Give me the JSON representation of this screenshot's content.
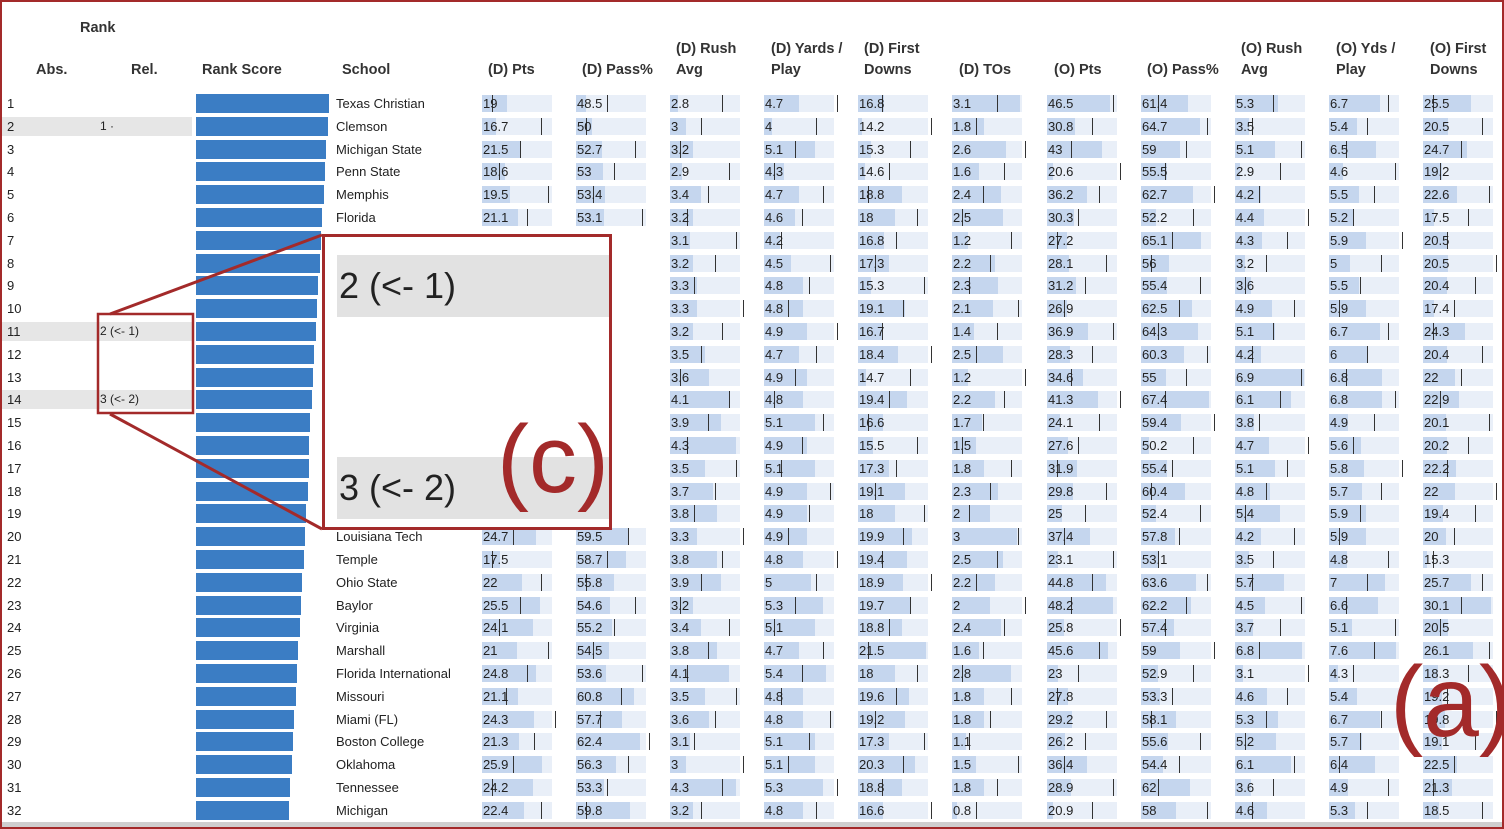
{
  "headers": {
    "rank": "Rank",
    "abs": "Abs.",
    "rel": "Rel.",
    "rank_score": "Rank Score",
    "school": "School",
    "d_pts": "(D) Pts",
    "d_pass": "(D) Pass%",
    "d_rush_1": "(D) Rush",
    "d_rush_2": "Avg",
    "d_yds_1": "(D) Yards /",
    "d_yds_2": "Play",
    "d_fd_1": "(D) First",
    "d_fd_2": "Downs",
    "d_tos": "(D) TOs",
    "o_pts": "(O) Pts",
    "o_pass": "(O) Pass%",
    "o_rush_1": "(O) Rush",
    "o_rush_2": "Avg",
    "o_yds_1": "(O) Yds /",
    "o_yds_2": "Play",
    "o_fd_1": "(O) First",
    "o_fd_2": "Downs"
  },
  "rows": [
    {
      "abs": "1",
      "rel": "",
      "school": "Texas Christian",
      "score": 1.0,
      "v": [
        "19",
        "48.5",
        "2.8",
        "4.7",
        "16.8",
        "3.1",
        "46.5",
        "61.4",
        "5.3",
        "6.7",
        "25.5"
      ]
    },
    {
      "abs": "2",
      "rel": "1 ·",
      "school": "Clemson",
      "score": 0.99,
      "v": [
        "16.7",
        "50",
        "3",
        "4",
        "14.2",
        "1.8",
        "30.8",
        "64.7",
        "3.5",
        "5.4",
        "20.5"
      ]
    },
    {
      "abs": "3",
      "rel": "",
      "school": "Michigan State",
      "score": 0.98,
      "v": [
        "21.5",
        "52.7",
        "3.2",
        "5.1",
        "15.3",
        "2.6",
        "43",
        "59",
        "5.1",
        "6.5",
        "24.7"
      ]
    },
    {
      "abs": "4",
      "rel": "",
      "school": "Penn State",
      "score": 0.97,
      "v": [
        "18.6",
        "53",
        "2.9",
        "4.3",
        "14.6",
        "1.6",
        "20.6",
        "55.5",
        "2.9",
        "4.6",
        "19.2"
      ]
    },
    {
      "abs": "5",
      "rel": "",
      "school": "Memphis",
      "score": 0.96,
      "v": [
        "19.5",
        "53.4",
        "3.4",
        "4.7",
        "18.8",
        "2.4",
        "36.2",
        "62.7",
        "4.2",
        "5.5",
        "22.6"
      ]
    },
    {
      "abs": "6",
      "rel": "",
      "school": "Florida",
      "score": 0.95,
      "v": [
        "21.1",
        "53.1",
        "3.2",
        "4.6",
        "18",
        "2.5",
        "30.3",
        "52.2",
        "4.4",
        "5.2",
        "17.5"
      ]
    },
    {
      "abs": "7",
      "rel": "",
      "school": "",
      "score": 0.94,
      "v": [
        "",
        "",
        "3.1",
        "4.2",
        "16.8",
        "1.2",
        "27.2",
        "65.1",
        "4.3",
        "5.9",
        "20.5"
      ]
    },
    {
      "abs": "8",
      "rel": "",
      "school": "",
      "score": 0.93,
      "v": [
        "",
        "",
        "3.2",
        "4.5",
        "17.3",
        "2.2",
        "28.1",
        "56",
        "3.2",
        "5",
        "20.5"
      ]
    },
    {
      "abs": "9",
      "rel": "",
      "school": "",
      "score": 0.92,
      "v": [
        "",
        "",
        "3.3",
        "4.8",
        "15.3",
        "2.3",
        "31.2",
        "55.4",
        "3.6",
        "5.5",
        "20.4"
      ]
    },
    {
      "abs": "10",
      "rel": "",
      "school": "",
      "score": 0.91,
      "v": [
        "",
        "",
        "3.3",
        "4.8",
        "19.1",
        "2.1",
        "26.9",
        "62.5",
        "4.9",
        "5.9",
        "17.4"
      ]
    },
    {
      "abs": "11",
      "rel": "2 (<- 1)",
      "school": "",
      "score": 0.9,
      "v": [
        "",
        "",
        "3.2",
        "4.9",
        "16.7",
        "1.4",
        "36.9",
        "64.3",
        "5.1",
        "6.7",
        "24.3"
      ]
    },
    {
      "abs": "12",
      "rel": "",
      "school": "",
      "score": 0.89,
      "v": [
        "",
        "",
        "3.5",
        "4.7",
        "18.4",
        "2.5",
        "28.3",
        "60.3",
        "4.2",
        "6",
        "20.4"
      ]
    },
    {
      "abs": "13",
      "rel": "",
      "school": "",
      "score": 0.88,
      "v": [
        "",
        "",
        "3.6",
        "4.9",
        "14.7",
        "1.2",
        "34.6",
        "55",
        "6.9",
        "6.8",
        "22"
      ]
    },
    {
      "abs": "14",
      "rel": "3 (<- 2)",
      "school": "",
      "score": 0.87,
      "v": [
        "",
        "",
        "4.1",
        "4.8",
        "19.4",
        "2.2",
        "41.3",
        "67.4",
        "6.1",
        "6.8",
        "22.9"
      ]
    },
    {
      "abs": "15",
      "rel": "",
      "school": "",
      "score": 0.86,
      "v": [
        "",
        "",
        "3.9",
        "5.1",
        "16.6",
        "1.7",
        "24.1",
        "59.4",
        "3.8",
        "4.9",
        "20.1"
      ]
    },
    {
      "abs": "16",
      "rel": "",
      "school": "",
      "score": 0.85,
      "v": [
        "",
        "",
        "4.3",
        "4.9",
        "15.5",
        "1.5",
        "27.6",
        "50.2",
        "4.7",
        "5.6",
        "20.2"
      ]
    },
    {
      "abs": "17",
      "rel": "",
      "school": "",
      "score": 0.85,
      "v": [
        "",
        "",
        "3.5",
        "5.1",
        "17.3",
        "1.8",
        "31.9",
        "55.4",
        "5.1",
        "5.8",
        "22.2"
      ]
    },
    {
      "abs": "18",
      "rel": "",
      "school": "",
      "score": 0.84,
      "v": [
        "",
        "",
        "3.7",
        "4.9",
        "19.1",
        "2.3",
        "29.8",
        "60.4",
        "4.8",
        "5.7",
        "22"
      ]
    },
    {
      "abs": "19",
      "rel": "",
      "school": "",
      "score": 0.83,
      "v": [
        "",
        "",
        "3.8",
        "4.9",
        "18",
        "2",
        "25",
        "52.4",
        "5.4",
        "5.9",
        "19.4"
      ]
    },
    {
      "abs": "20",
      "rel": "",
      "school": "Louisiana Tech",
      "score": 0.82,
      "v": [
        "24.7",
        "59.5",
        "3.3",
        "4.9",
        "19.9",
        "3",
        "37.4",
        "57.8",
        "4.2",
        "5.9",
        "20"
      ]
    },
    {
      "abs": "21",
      "rel": "",
      "school": "Temple",
      "score": 0.81,
      "v": [
        "17.5",
        "58.7",
        "3.8",
        "4.8",
        "19.4",
        "2.5",
        "23.1",
        "53.1",
        "3.5",
        "4.8",
        "15.3"
      ]
    },
    {
      "abs": "22",
      "rel": "",
      "school": "Ohio State",
      "score": 0.8,
      "v": [
        "22",
        "55.8",
        "3.9",
        "5",
        "18.9",
        "2.2",
        "44.8",
        "63.6",
        "5.7",
        "7",
        "25.7"
      ]
    },
    {
      "abs": "23",
      "rel": "",
      "school": "Baylor",
      "score": 0.79,
      "v": [
        "25.5",
        "54.6",
        "3.2",
        "5.3",
        "19.7",
        "2",
        "48.2",
        "62.2",
        "4.5",
        "6.6",
        "30.1"
      ]
    },
    {
      "abs": "24",
      "rel": "",
      "school": "Virginia",
      "score": 0.78,
      "v": [
        "24.1",
        "55.2",
        "3.4",
        "5.1",
        "18.8",
        "2.4",
        "25.8",
        "57.4",
        "3.7",
        "5.1",
        "20.5"
      ]
    },
    {
      "abs": "25",
      "rel": "",
      "school": "Marshall",
      "score": 0.77,
      "v": [
        "21",
        "54.5",
        "3.8",
        "4.7",
        "21.5",
        "1.6",
        "45.6",
        "59",
        "6.8",
        "7.6",
        "26.1"
      ]
    },
    {
      "abs": "26",
      "rel": "",
      "school": "Florida International",
      "score": 0.76,
      "v": [
        "24.8",
        "53.6",
        "4.1",
        "5.4",
        "18",
        "2.8",
        "23",
        "52.9",
        "3.1",
        "4.3",
        "18.3"
      ]
    },
    {
      "abs": "27",
      "rel": "",
      "school": "Missouri",
      "score": 0.75,
      "v": [
        "21.1",
        "60.8",
        "3.5",
        "4.8",
        "19.6",
        "1.8",
        "27.8",
        "53.3",
        "4.6",
        "5.4",
        "19.2"
      ]
    },
    {
      "abs": "28",
      "rel": "",
      "school": "Miami (FL)",
      "score": 0.74,
      "v": [
        "24.3",
        "57.7",
        "3.6",
        "4.8",
        "19.2",
        "1.8",
        "29.2",
        "58.1",
        "5.3",
        "6.7",
        "19.8"
      ]
    },
    {
      "abs": "29",
      "rel": "",
      "school": "Boston College",
      "score": 0.73,
      "v": [
        "21.3",
        "62.4",
        "3.1",
        "5.1",
        "17.3",
        "1.1",
        "26.2",
        "55.6",
        "5.2",
        "5.7",
        "19.1"
      ]
    },
    {
      "abs": "30",
      "rel": "",
      "school": "Oklahoma",
      "score": 0.72,
      "v": [
        "25.9",
        "56.3",
        "3",
        "5.1",
        "20.3",
        "1.5",
        "36.4",
        "54.4",
        "6.1",
        "6.4",
        "22.5"
      ]
    },
    {
      "abs": "31",
      "rel": "",
      "school": "Tennessee",
      "score": 0.71,
      "v": [
        "24.2",
        "53.3",
        "4.3",
        "5.3",
        "18.8",
        "1.8",
        "28.9",
        "62",
        "3.6",
        "4.9",
        "21.3"
      ]
    },
    {
      "abs": "32",
      "rel": "",
      "school": "Michigan",
      "score": 0.7,
      "v": [
        "22.4",
        "59.8",
        "3.2",
        "4.8",
        "16.6",
        "0.8",
        "20.9",
        "58",
        "4.6",
        "5.3",
        "18.5"
      ]
    }
  ],
  "zoom": {
    "row1": "2 (<- 1)",
    "row2": "3 (<- 2)"
  },
  "labels": {
    "c": "(c)",
    "a": "(a)"
  },
  "colors": {
    "rank_bar": "#3b7dc4",
    "metric_bar": "#c5d6ee",
    "annotation": "#a32a2a"
  }
}
